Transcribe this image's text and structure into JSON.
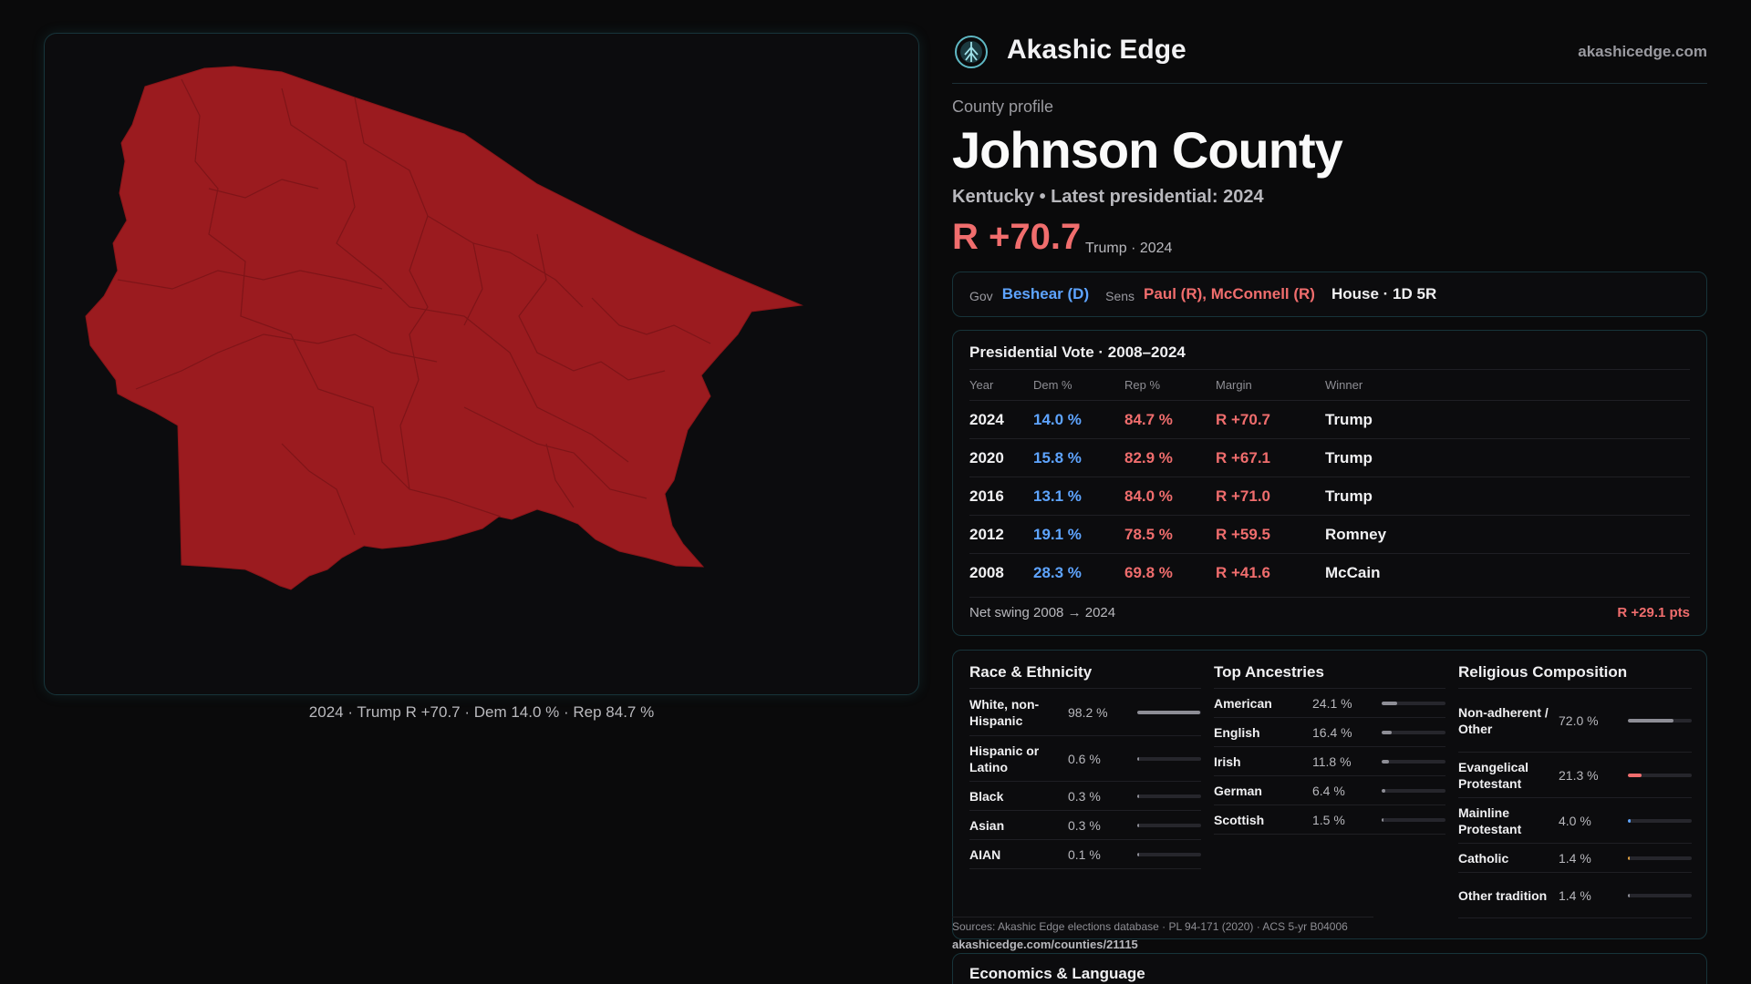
{
  "brand": {
    "name": "Akashic Edge",
    "url": "akashicedge.com",
    "logo_icon": "tree-of-life-icon"
  },
  "header": {
    "eyebrow": "County profile",
    "title": "Johnson County",
    "subtitle": "Kentucky • Latest presidential: 2024",
    "margin": "R +70.7",
    "margin_note": "Trump · 2024"
  },
  "map": {
    "fill_color": "#9b1b1f",
    "caption": "2024 · Trump R +70.7 · Dem 14.0 % · Rep 84.7 %"
  },
  "officials": {
    "gov_label": "Gov",
    "gov": "Beshear (D)",
    "sens_label": "Sens",
    "sens": "Paul (R), McConnell (R)",
    "house": "House · 1D 5R"
  },
  "presidential": {
    "title": "Presidential Vote · 2008–2024",
    "headers": {
      "year": "Year",
      "dem": "Dem %",
      "rep": "Rep %",
      "margin": "Margin",
      "winner": "Winner"
    },
    "rows": [
      {
        "year": "2024",
        "dem": "14.0 %",
        "rep": "84.7 %",
        "margin": "R +70.7",
        "winner": "Trump"
      },
      {
        "year": "2020",
        "dem": "15.8 %",
        "rep": "82.9 %",
        "margin": "R +67.1",
        "winner": "Trump"
      },
      {
        "year": "2016",
        "dem": "13.1 %",
        "rep": "84.0 %",
        "margin": "R +71.0",
        "winner": "Trump"
      },
      {
        "year": "2012",
        "dem": "19.1 %",
        "rep": "78.5 %",
        "margin": "R +59.5",
        "winner": "Romney"
      },
      {
        "year": "2008",
        "dem": "28.3 %",
        "rep": "69.8 %",
        "margin": "R +41.6",
        "winner": "McCain"
      }
    ],
    "swing_label": "Net swing 2008 → 2024",
    "swing_value": "R +29.1 pts"
  },
  "race": {
    "title": "Race & Ethnicity",
    "items": [
      {
        "label": "White, non-Hispanic",
        "value": "98.2 %",
        "pct": 98.2
      },
      {
        "label": "Hispanic or Latino",
        "value": "0.6 %",
        "pct": 0.6
      },
      {
        "label": "Black",
        "value": "0.3 %",
        "pct": 0.3
      },
      {
        "label": "Asian",
        "value": "0.3 %",
        "pct": 0.3
      },
      {
        "label": "AIAN",
        "value": "0.1 %",
        "pct": 0.1
      }
    ]
  },
  "ancestry": {
    "title": "Top Ancestries",
    "items": [
      {
        "label": "American",
        "value": "24.1 %",
        "pct": 24.1
      },
      {
        "label": "English",
        "value": "16.4 %",
        "pct": 16.4
      },
      {
        "label": "Irish",
        "value": "11.8 %",
        "pct": 11.8
      },
      {
        "label": "German",
        "value": "6.4 %",
        "pct": 6.4
      },
      {
        "label": "Scottish",
        "value": "1.5 %",
        "pct": 1.5
      }
    ]
  },
  "religion": {
    "title": "Religious Composition",
    "items": [
      {
        "label": "Non-adherent / Other",
        "value": "72.0 %",
        "pct": 72.0,
        "color": "#8e8e96"
      },
      {
        "label": "Evangelical Protestant",
        "value": "21.3 %",
        "pct": 21.3,
        "color": "#f06d6d"
      },
      {
        "label": "Mainline Protestant",
        "value": "4.0 %",
        "pct": 4.0,
        "color": "#5ea4ff"
      },
      {
        "label": "Catholic",
        "value": "1.4 %",
        "pct": 1.4,
        "color": "#e0a040"
      },
      {
        "label": "Other tradition",
        "value": "1.4 %",
        "pct": 1.4,
        "color": "#8e8e96"
      }
    ]
  },
  "sources": {
    "text": "Sources: Akashic Edge elections database · PL 94-171 (2020) · ACS 5-yr B04006",
    "url": "akashicedge.com/counties/21115"
  },
  "economics": {
    "title": "Economics & Language"
  }
}
